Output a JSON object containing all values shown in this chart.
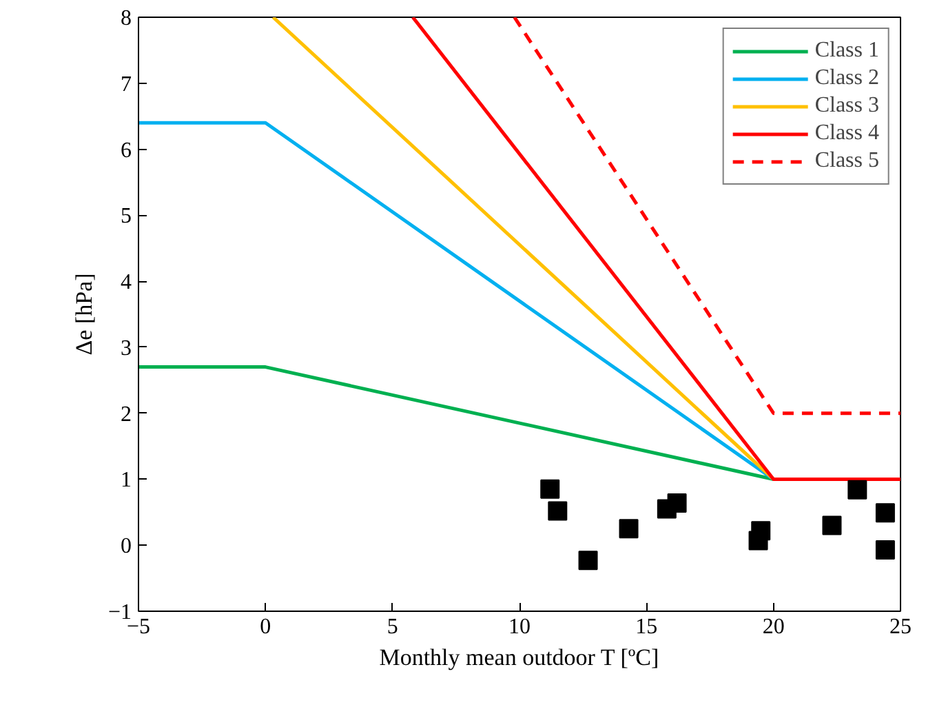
{
  "chart_data": {
    "type": "line",
    "xlabel": "Monthly mean outdoor T [ºC]",
    "ylabel": "Δe [hPa]",
    "xlim": [
      -5,
      25
    ],
    "ylim": [
      -1,
      8
    ],
    "xticks": [
      -5,
      0,
      5,
      10,
      15,
      20,
      25
    ],
    "yticks": [
      -1,
      0,
      1,
      2,
      3,
      4,
      5,
      6,
      7,
      8
    ],
    "grid": false,
    "legend": "top right",
    "marker": "none",
    "series": [
      {
        "name": "Class 1",
        "color": "#00b050",
        "line_style": "solid",
        "x": [
          -5,
          0,
          20
        ],
        "values": [
          2.7,
          2.7,
          1
        ]
      },
      {
        "name": "Class 2",
        "color": "#00b0f0",
        "line_style": "solid",
        "x": [
          -5,
          0,
          20
        ],
        "values": [
          6.4,
          6.4,
          1
        ]
      },
      {
        "name": "Class 3",
        "color": "#ffc000",
        "line_style": "solid",
        "x": [
          0.3,
          20
        ],
        "values": [
          8,
          1
        ]
      },
      {
        "name": "Class 4",
        "color": "#ff0000",
        "line_style": "solid",
        "x": [
          5.8,
          20,
          25
        ],
        "values": [
          8,
          1,
          1
        ]
      },
      {
        "name": "Class 5",
        "color": "#ff0000",
        "line_style": "dashed",
        "x": [
          9.8,
          20,
          25
        ],
        "values": [
          8,
          2,
          2
        ]
      },
      {
        "color": "#000000",
        "type": "scatter",
        "marker": "square",
        "x": [
          11.2,
          11.5,
          12.7,
          14.3,
          15.8,
          16.2,
          19.5,
          19.4,
          22.3,
          23.3,
          24.4,
          24.4
        ],
        "values": [
          0.85,
          0.52,
          -0.23,
          0.25,
          0.55,
          0.64,
          0.22,
          0.07,
          0.3,
          0.84,
          0.49,
          -0.07
        ]
      }
    ]
  }
}
